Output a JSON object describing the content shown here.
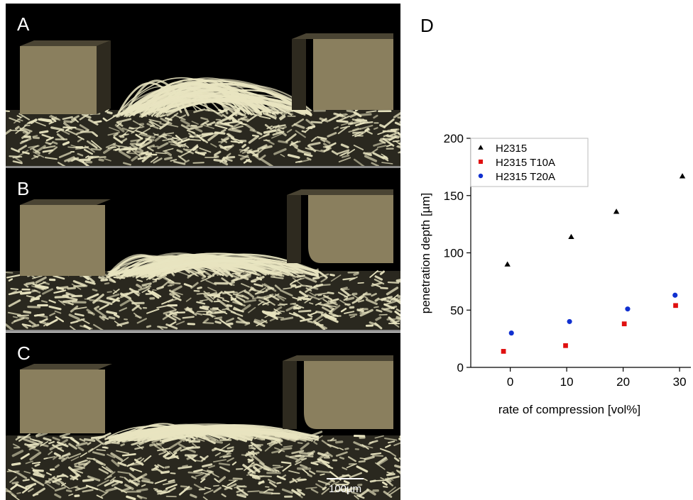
{
  "panels": {
    "a_label": "A",
    "b_label": "B",
    "c_label": "C",
    "d_label": "D",
    "scale_bar_label": "100µm"
  },
  "colors": {
    "fiber": "#e8e4c0",
    "block": "#8a7f5e",
    "background_dark": "#000000",
    "h2315": "#000000",
    "h2315_t10a": "#e01010",
    "h2315_t20a": "#1030d0"
  },
  "chart_data": {
    "type": "scatter",
    "xlabel": "rate of compression [vol%]",
    "ylabel": "penetration depth  [µm]",
    "xlim": [
      -7,
      32
    ],
    "ylim": [
      0,
      200
    ],
    "xticks": [
      0,
      10,
      20,
      30
    ],
    "yticks": [
      0,
      50,
      100,
      150,
      200
    ],
    "legend_position": "top-left",
    "grid": false,
    "series": [
      {
        "name": "H2315",
        "marker": "triangle",
        "color": "#000000",
        "points": [
          [
            -0.5,
            90
          ],
          [
            10.8,
            114
          ],
          [
            18.8,
            136
          ],
          [
            30.5,
            167
          ]
        ]
      },
      {
        "name": "H2315 T10A",
        "marker": "square",
        "color": "#e01010",
        "points": [
          [
            -1.2,
            14
          ],
          [
            9.8,
            19
          ],
          [
            20.2,
            38
          ],
          [
            29.3,
            54
          ]
        ]
      },
      {
        "name": "H2315 T20A",
        "marker": "circle",
        "color": "#1030d0",
        "points": [
          [
            0.2,
            30
          ],
          [
            10.5,
            40
          ],
          [
            20.8,
            51
          ],
          [
            29.2,
            63
          ]
        ]
      }
    ]
  }
}
